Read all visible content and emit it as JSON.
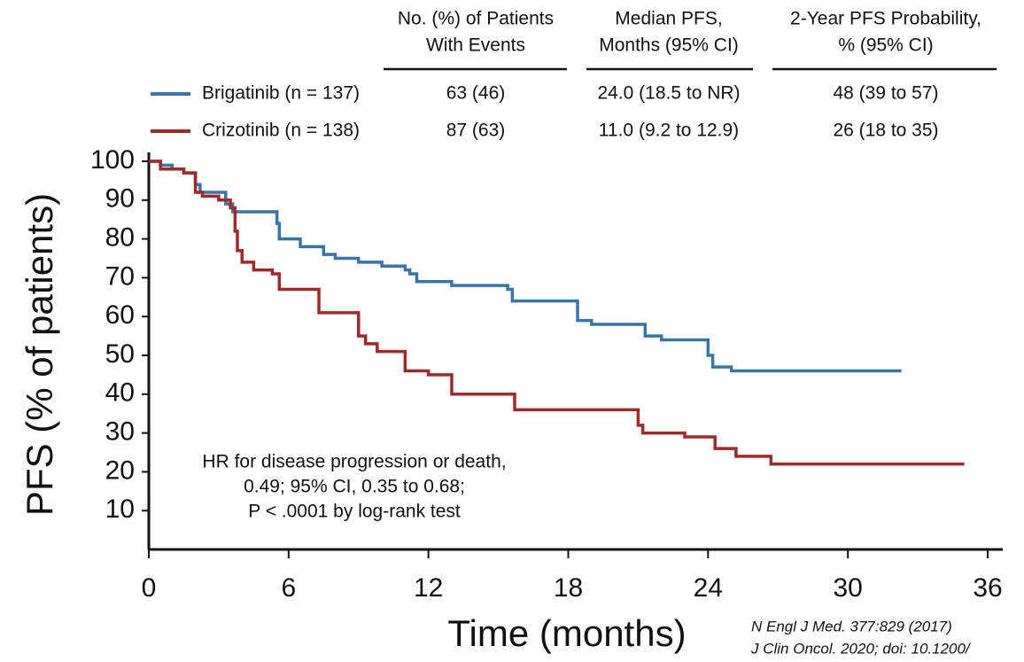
{
  "chart_data": {
    "type": "line",
    "step": true,
    "xlabel": "Time (months)",
    "ylabel": "PFS (% of patients)",
    "xlim": [
      0,
      36
    ],
    "xticks": [
      0,
      6,
      12,
      18,
      24,
      30,
      36
    ],
    "ylim": [
      0,
      100
    ],
    "yticks": [
      10,
      20,
      30,
      40,
      50,
      60,
      70,
      80,
      90,
      100
    ],
    "series": [
      {
        "name": "Brigatinib (n = 137)",
        "color": "#3a75a8",
        "x": [
          0,
          0.5,
          1,
          1.5,
          2,
          2.2,
          3.3,
          3.6,
          5.5,
          5.6,
          6.5,
          7.5,
          8,
          9,
          10,
          11,
          11.2,
          11.5,
          13,
          15.4,
          15.6,
          18.4,
          19,
          21.3,
          22,
          24,
          24.2,
          25,
          32.3
        ],
        "values": [
          100,
          99,
          98,
          97,
          94,
          92,
          89,
          87,
          84,
          80,
          78,
          76,
          75,
          74,
          73,
          72,
          71,
          69,
          68,
          67,
          64,
          59,
          58,
          55,
          54,
          50,
          47,
          46,
          46
        ]
      },
      {
        "name": "Crizotinib (n = 138)",
        "color": "#9e2a2b",
        "x": [
          0,
          0.5,
          1.5,
          2,
          2.3,
          3,
          3.5,
          3.7,
          3.8,
          4,
          4.5,
          5.3,
          5.6,
          7.3,
          9,
          9.3,
          9.8,
          11,
          12,
          13,
          15.7,
          21,
          21.2,
          23,
          24.3,
          25.2,
          26.7,
          35
        ],
        "values": [
          100,
          98,
          97,
          92,
          91,
          90,
          88,
          82,
          77,
          74,
          72,
          71,
          67,
          61,
          55,
          53,
          51,
          46,
          45,
          40,
          36,
          32,
          30,
          29,
          26,
          24,
          22,
          22
        ]
      }
    ],
    "annotation": [
      "HR for disease progression or death,",
      "0.49; 95%  CI, 0.35 to 0.68;",
      "P < .0001 by log-rank test"
    ],
    "table": {
      "columns": [
        [
          "No. (%) of Patients",
          "With Events"
        ],
        [
          "Median PFS,",
          "Months (95% CI)"
        ],
        [
          "2-Year PFS Probability,",
          "% (95% CI)"
        ]
      ],
      "rows": [
        [
          "63 (46)",
          "24.0 (18.5 to NR)",
          "48 (39 to 57)"
        ],
        [
          "87 (63)",
          "11.0 (9.2 to 12.9)",
          "26 (18 to 35)"
        ]
      ]
    },
    "citations": [
      "N Engl J Med. 377:829 (2017)",
      "J Clin Oncol. 2020; doi: 10.1200/"
    ]
  }
}
